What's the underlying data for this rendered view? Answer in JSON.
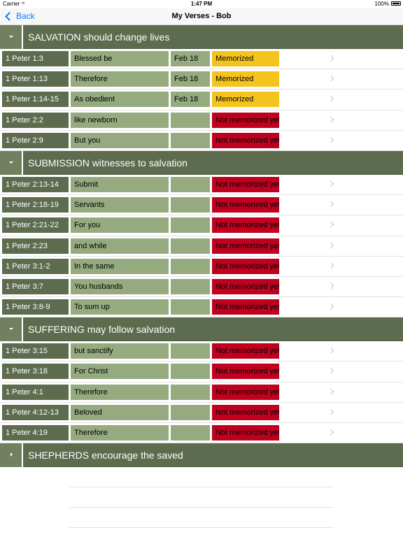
{
  "status_bar": {
    "carrier": "Carrier",
    "time": "1:47 PM",
    "battery": "100%"
  },
  "nav": {
    "back_label": "Back",
    "title": "My Verses - Bob"
  },
  "sections": [
    {
      "title": "SALVATION should change lives",
      "expanded": true,
      "rows": [
        {
          "ref": "1 Peter 1:3",
          "text": "Blessed be",
          "date": "Feb 18",
          "status": "Memorized"
        },
        {
          "ref": "1 Peter 1:13",
          "text": "Therefore",
          "date": "Feb 18",
          "status": "Memorized"
        },
        {
          "ref": "1 Peter 1:14-15",
          "text": "As obedient",
          "date": "Feb 18",
          "status": "Memorized"
        },
        {
          "ref": "1 Peter 2:2",
          "text": "like newborn",
          "date": "",
          "status": "Not memorized yet"
        },
        {
          "ref": "1 Peter 2:9",
          "text": "But you",
          "date": "",
          "status": "Not memorized yet"
        }
      ]
    },
    {
      "title": "SUBMISSION witnesses to salvation",
      "expanded": true,
      "rows": [
        {
          "ref": "1 Peter 2:13-14",
          "text": "Submit",
          "date": "",
          "status": "Not memorized yet"
        },
        {
          "ref": "1 Peter 2:18-19",
          "text": "Servants",
          "date": "",
          "status": "Not memorized yet"
        },
        {
          "ref": "1 Peter 2:21-22",
          "text": "For you",
          "date": "",
          "status": "Not memorized yet"
        },
        {
          "ref": "1 Peter 2:23",
          "text": "and while",
          "date": "",
          "status": "Not memorized yet"
        },
        {
          "ref": "1 Peter 3:1-2",
          "text": "In the same",
          "date": "",
          "status": "Not memorized yet"
        },
        {
          "ref": "1 Peter 3:7",
          "text": "You husbands",
          "date": "",
          "status": "Not memorized yet"
        },
        {
          "ref": "1 Peter 3:8-9",
          "text": "To sum up",
          "date": "",
          "status": "Not memorized yet"
        }
      ]
    },
    {
      "title": "SUFFERING may follow salvation",
      "expanded": true,
      "rows": [
        {
          "ref": "1 Peter 3:15",
          "text": "but sanctify",
          "date": "",
          "status": "Not memorized yet"
        },
        {
          "ref": "1 Peter 3:18",
          "text": "For Christ",
          "date": "",
          "status": "Not memorized yet"
        },
        {
          "ref": "1 Peter 4:1",
          "text": "Therefore",
          "date": "",
          "status": "Not memorized yet"
        },
        {
          "ref": "1 Peter 4:12-13",
          "text": "Beloved",
          "date": "",
          "status": "Not memorized yet"
        },
        {
          "ref": "1 Peter 4:19",
          "text": "Therefore",
          "date": "",
          "status": "Not memorized yet"
        }
      ]
    },
    {
      "title": "SHEPHERDS encourage the saved",
      "expanded": false,
      "rows": []
    }
  ],
  "colors": {
    "section_bg": "#5d6b4e",
    "ref_bg": "#5d6b4e",
    "cell_bg": "#95ab7f",
    "memorized": "#f5c41c",
    "not_memorized": "#c0001e",
    "link": "#0a7aff"
  }
}
